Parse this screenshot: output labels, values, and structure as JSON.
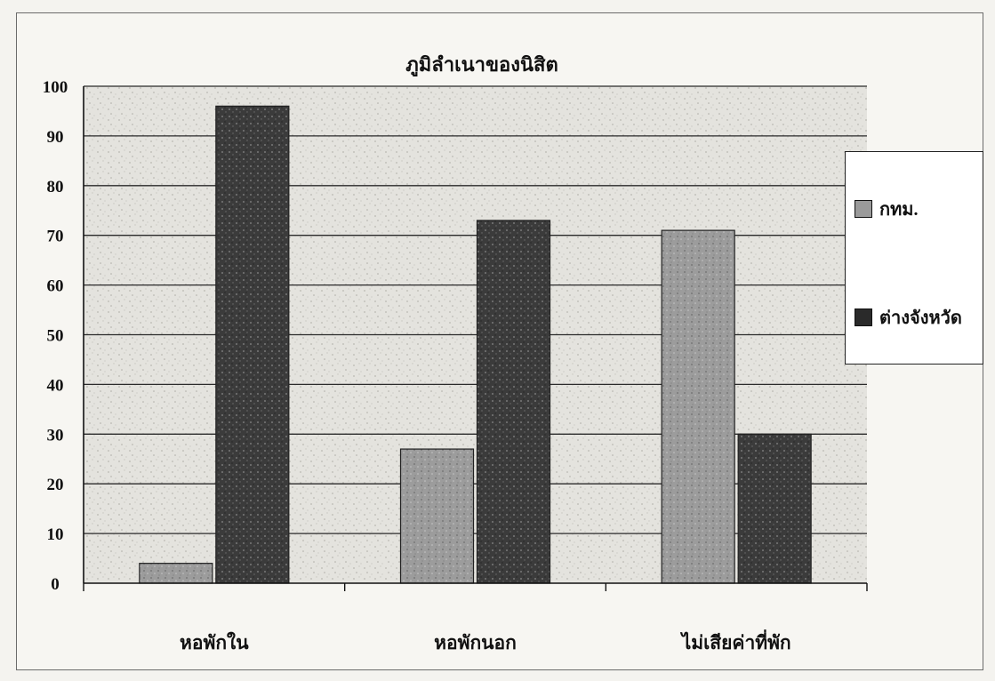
{
  "chart_data": {
    "type": "bar",
    "title": "ภูมิลำเนาของนิสิต",
    "categories": [
      "หอพักใน",
      "หอพักนอก",
      "ไม่เสียค่าที่พัก"
    ],
    "series": [
      {
        "name": "กทม.",
        "values": [
          4,
          27,
          71
        ],
        "color": "#9a9a9a"
      },
      {
        "name": "ต่างจังหวัด",
        "values": [
          96,
          73,
          30
        ],
        "color": "#3a3a3a"
      }
    ],
    "ylim": [
      0,
      100
    ],
    "yticks": [
      0,
      10,
      20,
      30,
      40,
      50,
      60,
      70,
      80,
      90,
      100
    ],
    "grid": true,
    "legend_position": "right"
  }
}
